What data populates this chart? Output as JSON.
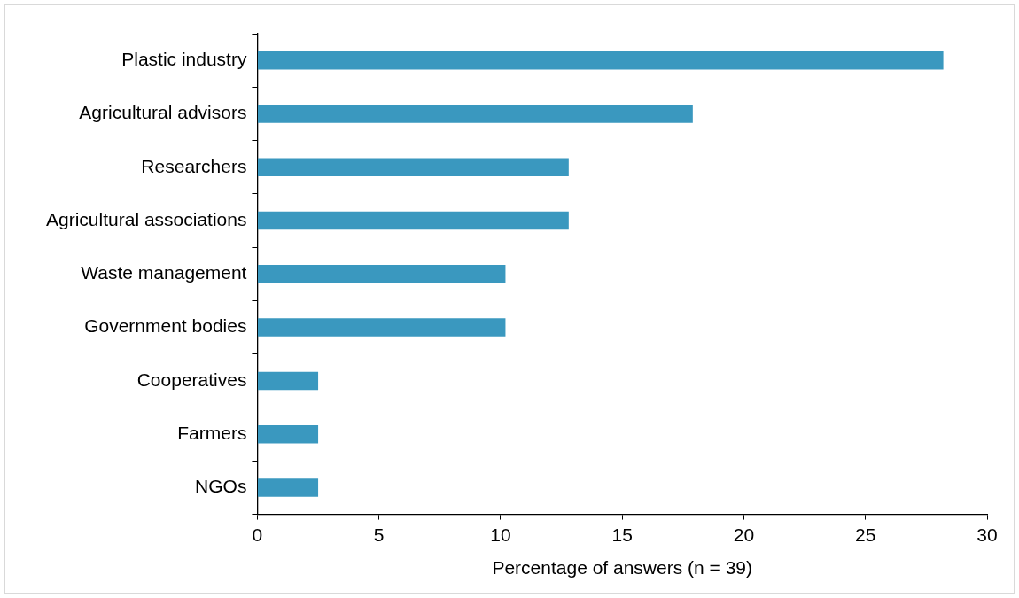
{
  "chart_data": {
    "type": "bar",
    "orientation": "horizontal",
    "xlabel": "Percentage of answers (n = 39)",
    "categories": [
      "Plastic industry",
      "Agricultural advisors",
      "Researchers",
      "Agricultural associations",
      "Waste management",
      "Government bodies",
      "Cooperatives",
      "Farmers",
      "NGOs"
    ],
    "values": [
      28.2,
      17.9,
      12.8,
      12.8,
      10.2,
      10.2,
      2.5,
      2.5,
      2.5
    ],
    "color": "#3a98bf",
    "xlim": [
      0,
      30
    ],
    "xticks": [
      0,
      5,
      10,
      15,
      20,
      25,
      30
    ],
    "grid": false,
    "legend": false
  }
}
